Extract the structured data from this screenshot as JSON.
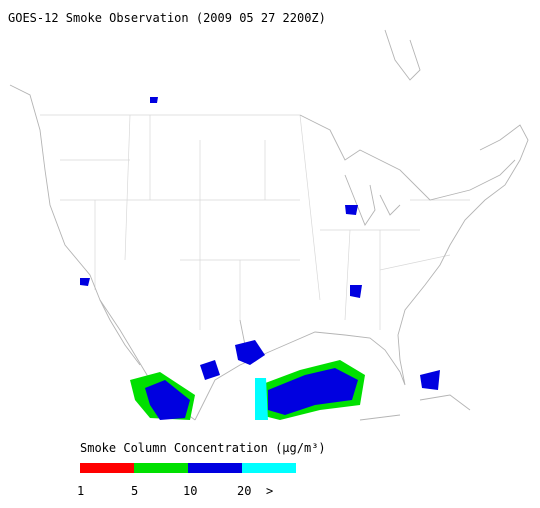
{
  "title": "GOES-12 Smoke Observation (2009 05 27  2200Z)",
  "legend": {
    "label": "Smoke Column Concentration (μg/m³)",
    "ticks": [
      "1",
      "5",
      "10",
      "20",
      ">"
    ],
    "colors": [
      "#ff0000",
      "#00e000",
      "#0000e0",
      "#00ffff"
    ]
  }
}
